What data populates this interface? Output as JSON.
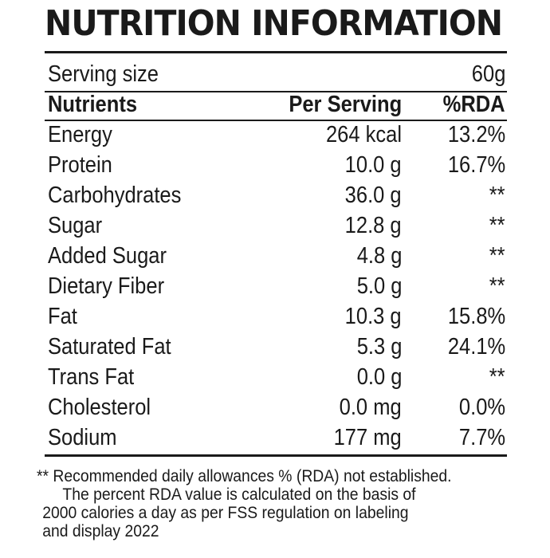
{
  "title": "NUTRITION INFORMATION",
  "serving": {
    "label": "Serving  size",
    "value": "60g"
  },
  "headers": {
    "nutrient": "Nutrients",
    "per_serving": "Per Serving",
    "rda": "%RDA"
  },
  "rows": [
    {
      "name": "Energy",
      "value": "264 kcal",
      "rda": "13.2%"
    },
    {
      "name": "Protein",
      "value": "10.0 g",
      "rda": "16.7%"
    },
    {
      "name": "Carbohydrates",
      "value": "36.0 g",
      "rda": "**"
    },
    {
      "name": "Sugar",
      "value": "12.8 g",
      "rda": "**"
    },
    {
      "name": "Added Sugar",
      "value": "4.8 g",
      "rda": "**"
    },
    {
      "name": "Dietary Fiber",
      "value": "5.0 g",
      "rda": "**"
    },
    {
      "name": "Fat",
      "value": "10.3 g",
      "rda": "15.8%"
    },
    {
      "name": "Saturated Fat",
      "value": "5.3 g",
      "rda": "24.1%"
    },
    {
      "name": "Trans Fat",
      "value": "0.0 g",
      "rda": "**"
    },
    {
      "name": "Cholesterol",
      "value": "0.0 mg",
      "rda": "0.0%"
    },
    {
      "name": "Sodium",
      "value": "177 mg",
      "rda": "7.7%"
    }
  ],
  "footnote": {
    "line1": "** Recommended daily allowances % (RDA) not established.",
    "line2": "The percent RDA value is calculated on the basis of",
    "line3": "2000 calories a day as per FSS regulation on labeling",
    "line4": "and display 2022"
  }
}
